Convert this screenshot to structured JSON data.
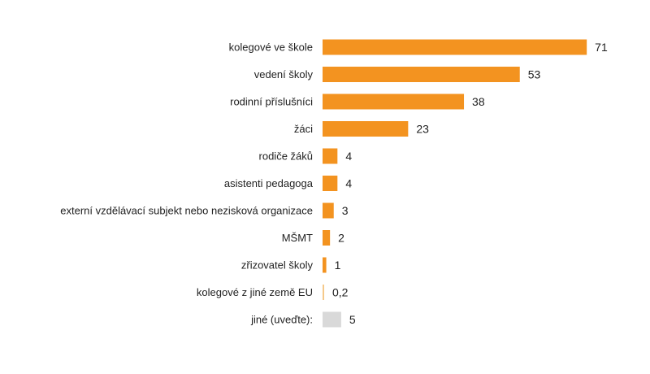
{
  "chart_data": {
    "type": "bar",
    "orientation": "horizontal",
    "title": "",
    "xlabel": "",
    "ylabel": "",
    "xlim": [
      0,
      71
    ],
    "grid": false,
    "legend": "none",
    "colors": {
      "main": "#f39320",
      "thin": "#f5c98a",
      "other": "#d9d9d9"
    },
    "categories": [
      "kolegové ve škole",
      "vedení školy",
      "rodinní příslušníci",
      "žáci",
      "rodiče žáků",
      "asistenti pedagoga",
      "externí vzdělávací subjekt nebo nezisková organizace",
      "MŠMT",
      "zřizovatel školy",
      "kolegové z jiné země EU",
      "jiné (uveďte):"
    ],
    "values": [
      71,
      53,
      38,
      23,
      4,
      4,
      3,
      2,
      1,
      0.2,
      5
    ],
    "value_labels": [
      "71",
      "53",
      "38",
      "23",
      "4",
      "4",
      "3",
      "2",
      "1",
      "0,2",
      "5"
    ],
    "bar_colors": [
      "main",
      "main",
      "main",
      "main",
      "main",
      "main",
      "main",
      "main",
      "main",
      "thin",
      "other"
    ]
  }
}
